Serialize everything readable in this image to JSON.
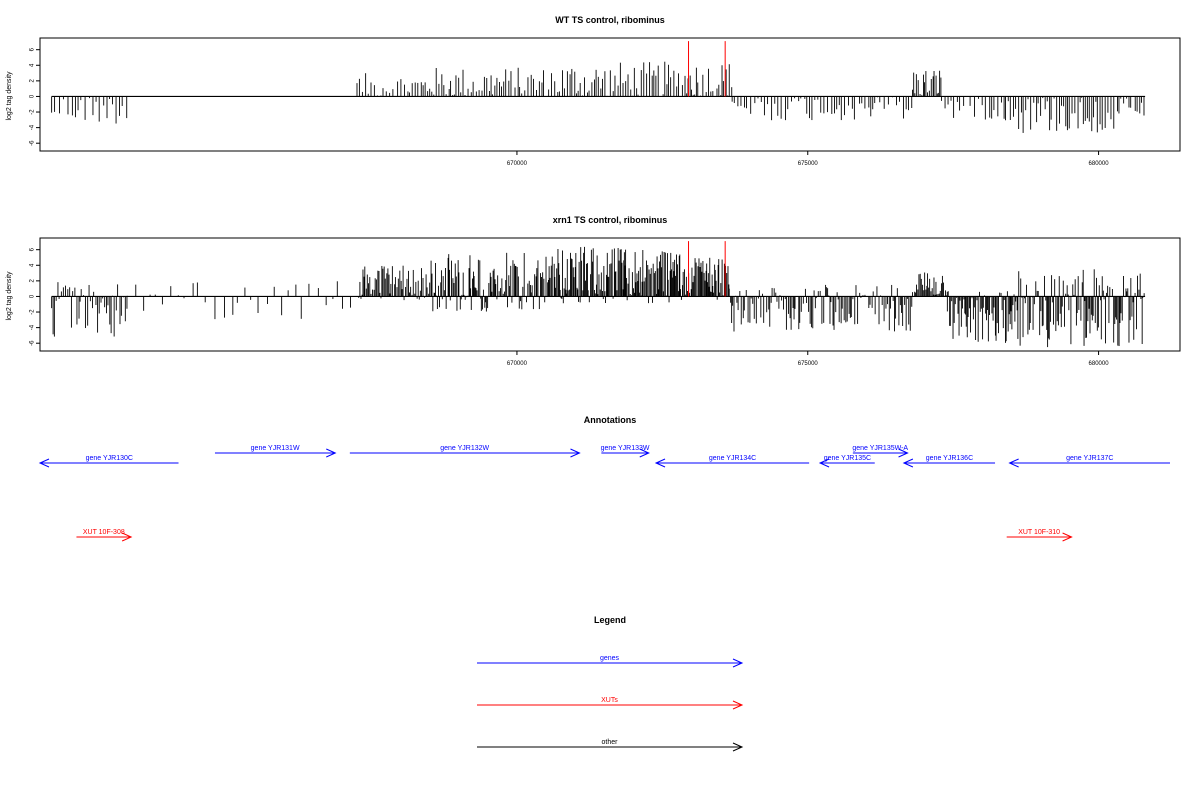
{
  "chart_data": [
    {
      "type": "bar",
      "title": "WT TS control, ribominus",
      "ylabel": "log2 tag density",
      "ylim": [
        -7,
        7.5
      ],
      "yticks": [
        "6",
        "4",
        "2",
        "0",
        "-2",
        "-4",
        "-6"
      ],
      "xlim": [
        661800,
        681400
      ],
      "xticks": [
        "670000",
        "675000",
        "680000"
      ],
      "baseline_range": [
        662000,
        680800
      ],
      "color": "#000000",
      "highlight_color": "#ff0000",
      "highlights": [
        {
          "x": 672950,
          "y": 7.1
        },
        {
          "x": 673580,
          "y": 7.1
        }
      ],
      "segments": [
        {
          "start": 662000,
          "end": 663300,
          "min": -3.6,
          "max": 0,
          "step": 60
        },
        {
          "start": 663300,
          "end": 667200,
          "min": 0,
          "max": 0,
          "step": 200
        },
        {
          "start": 667200,
          "end": 668500,
          "min": 0,
          "max": 3.0,
          "step": 45
        },
        {
          "start": 668500,
          "end": 670500,
          "min": 0,
          "max": 3.8,
          "step": 40
        },
        {
          "start": 670500,
          "end": 672800,
          "min": 0,
          "max": 4.5,
          "step": 40
        },
        {
          "start": 672800,
          "end": 673700,
          "min": 0,
          "max": 4.6,
          "step": 35
        },
        {
          "start": 673700,
          "end": 676800,
          "min": -3.2,
          "max": 0,
          "step": 55
        },
        {
          "start": 676800,
          "end": 677300,
          "min": 0,
          "max": 3.8,
          "step": 25
        },
        {
          "start": 677300,
          "end": 678400,
          "min": -3.0,
          "max": 0,
          "step": 55
        },
        {
          "start": 678400,
          "end": 680800,
          "min": -4.8,
          "max": 0,
          "step": 40
        }
      ]
    },
    {
      "type": "bar",
      "title": "xrn1 TS control, ribominus",
      "ylabel": "log2 tag density",
      "ylim": [
        -7,
        7.5
      ],
      "yticks": [
        "6",
        "4",
        "2",
        "0",
        "-2",
        "-4",
        "-6"
      ],
      "xlim": [
        661800,
        681400
      ],
      "xticks": [
        "670000",
        "675000",
        "680000"
      ],
      "baseline_range": [
        662000,
        680800
      ],
      "color": "#000000",
      "highlight_color": "#ff0000",
      "highlights": [
        {
          "x": 672950,
          "y": 7.1
        },
        {
          "x": 673580,
          "y": 7.1
        }
      ],
      "segments": [
        {
          "start": 662000,
          "end": 663300,
          "min": -5.5,
          "max": 2.0,
          "step": 30
        },
        {
          "start": 663300,
          "end": 667300,
          "min": -3.0,
          "max": 2.0,
          "step": 120
        },
        {
          "start": 667300,
          "end": 668500,
          "min": -0.5,
          "max": 4.2,
          "step": 20
        },
        {
          "start": 668500,
          "end": 670500,
          "min": -2.0,
          "max": 5.6,
          "step": 18
        },
        {
          "start": 670500,
          "end": 672800,
          "min": -1.0,
          "max": 6.4,
          "step": 16
        },
        {
          "start": 672800,
          "end": 673650,
          "min": -0.5,
          "max": 5.5,
          "step": 16
        },
        {
          "start": 673650,
          "end": 676800,
          "min": -4.5,
          "max": 1.5,
          "step": 26
        },
        {
          "start": 676800,
          "end": 677400,
          "min": 0,
          "max": 3.6,
          "step": 16
        },
        {
          "start": 677400,
          "end": 678600,
          "min": -6.0,
          "max": 1.0,
          "step": 18
        },
        {
          "start": 678600,
          "end": 680800,
          "min": -6.5,
          "max": 3.5,
          "step": 18
        }
      ]
    }
  ],
  "annotations": {
    "title": "Annotations",
    "color_genes": "#0000ff",
    "color_xuts": "#ff0000",
    "color_other": "#000000",
    "genes": [
      {
        "label": "gene YJR130C",
        "start": 662000,
        "end": 663900,
        "strand": "-",
        "row": 2
      },
      {
        "label": "gene YJR131W",
        "start": 664400,
        "end": 666050,
        "strand": "+",
        "row": 1
      },
      {
        "label": "gene YJR132W",
        "start": 666250,
        "end": 669400,
        "strand": "+",
        "row": 1
      },
      {
        "label": "gene YJR133W",
        "start": 669700,
        "end": 670350,
        "strand": "+",
        "row": 1
      },
      {
        "label": "gene YJR134C",
        "start": 670450,
        "end": 672550,
        "strand": "-",
        "row": 2
      },
      {
        "label": "gene YJR135C",
        "start": 672700,
        "end": 673450,
        "strand": "-",
        "row": 2
      },
      {
        "label": "gene YJR135W-A",
        "start": 673150,
        "end": 673900,
        "strand": "+",
        "row": 0
      },
      {
        "label": "gene YJR136C",
        "start": 673850,
        "end": 675100,
        "strand": "-",
        "row": 2
      },
      {
        "label": "gene YJR137C",
        "start": 675300,
        "end": 677500,
        "strand": "-",
        "row": 2
      }
    ],
    "xuts": [
      {
        "label": "XUT 10F-308",
        "start": 662500,
        "end": 663250,
        "strand": "+"
      },
      {
        "label": "XUT 10F-310",
        "start": 675260,
        "end": 676150,
        "strand": "+"
      }
    ]
  },
  "legend": {
    "title": "Legend",
    "items": [
      {
        "label": "genes",
        "color": "#0000ff"
      },
      {
        "label": "XUTs",
        "color": "#ff0000"
      },
      {
        "label": "other",
        "color": "#000000"
      }
    ]
  }
}
